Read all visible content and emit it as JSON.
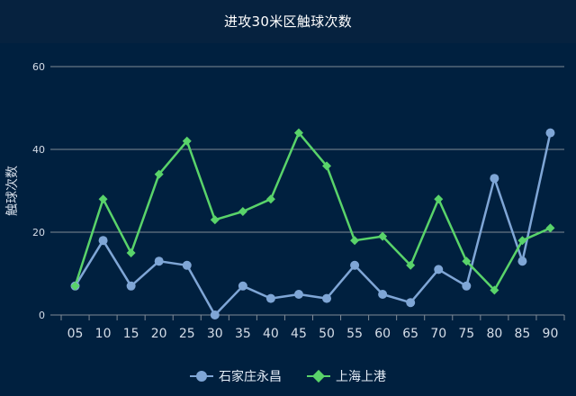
{
  "colors": {
    "background": "#00203f",
    "gridline": "#7f8a96",
    "axis_text": "#d5dde8",
    "series_1": "#7fa6d6",
    "series_2": "#59d36a"
  },
  "chart_data": {
    "type": "line",
    "title": "进攻30米区触球次数",
    "xlabel": "",
    "ylabel": "触球次数",
    "ylim": [
      0,
      60
    ],
    "yticks": [
      "0",
      "20",
      "40",
      "60"
    ],
    "grid": true,
    "legend_position": "bottom",
    "categories": [
      "05",
      "10",
      "15",
      "20",
      "25",
      "30",
      "35",
      "40",
      "45",
      "50",
      "55",
      "60",
      "65",
      "70",
      "75",
      "80",
      "85",
      "90"
    ],
    "series": [
      {
        "name": "石家庄永昌",
        "marker": "circle",
        "values": [
          7,
          18,
          7,
          13,
          12,
          0,
          7,
          4,
          5,
          4,
          12,
          5,
          3,
          11,
          7,
          33,
          13,
          44
        ]
      },
      {
        "name": "上海上港",
        "marker": "diamond",
        "values": [
          7,
          28,
          15,
          34,
          42,
          23,
          25,
          28,
          44,
          36,
          18,
          19,
          12,
          28,
          13,
          6,
          18,
          21
        ]
      }
    ]
  }
}
